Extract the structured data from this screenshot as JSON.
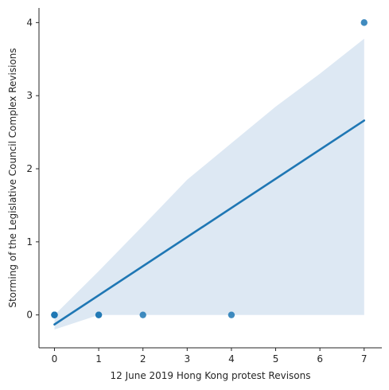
{
  "chart_data": {
    "type": "scatter",
    "xlabel": "12 June 2019 Hong Kong protest Revisons",
    "ylabel": "Storming of the Legislative Council Complex Revisions",
    "xlim": [
      -0.35,
      7.4
    ],
    "ylim": [
      -0.45,
      4.2
    ],
    "x_ticks": [
      "0",
      "1",
      "2",
      "3",
      "4",
      "5",
      "6",
      "7"
    ],
    "y_ticks": [
      "0",
      "1",
      "2",
      "3",
      "4"
    ],
    "points": [
      {
        "x": 0,
        "y": 0
      },
      {
        "x": 0,
        "y": 0
      },
      {
        "x": 0,
        "y": 0
      },
      {
        "x": 0,
        "y": 0
      },
      {
        "x": 1,
        "y": 0
      },
      {
        "x": 1,
        "y": 0
      },
      {
        "x": 2,
        "y": 0
      },
      {
        "x": 4,
        "y": 0
      },
      {
        "x": 7,
        "y": 4
      }
    ],
    "regression_line": {
      "x": [
        0,
        7
      ],
      "y": [
        -0.13,
        2.66
      ]
    },
    "confidence_band": {
      "x": [
        0,
        1,
        2,
        3,
        4,
        5,
        6,
        7
      ],
      "upper": [
        0.0,
        0.6,
        1.22,
        1.85,
        2.35,
        2.85,
        3.3,
        3.78
      ],
      "lower": [
        -0.2,
        0.0,
        0.0,
        0.0,
        0.0,
        0.0,
        0.0,
        0.0
      ]
    },
    "grid": false,
    "legend": "none",
    "colors": {
      "points": "#1f77b4",
      "line": "#1f77b4",
      "band": "#dde8f3"
    }
  }
}
